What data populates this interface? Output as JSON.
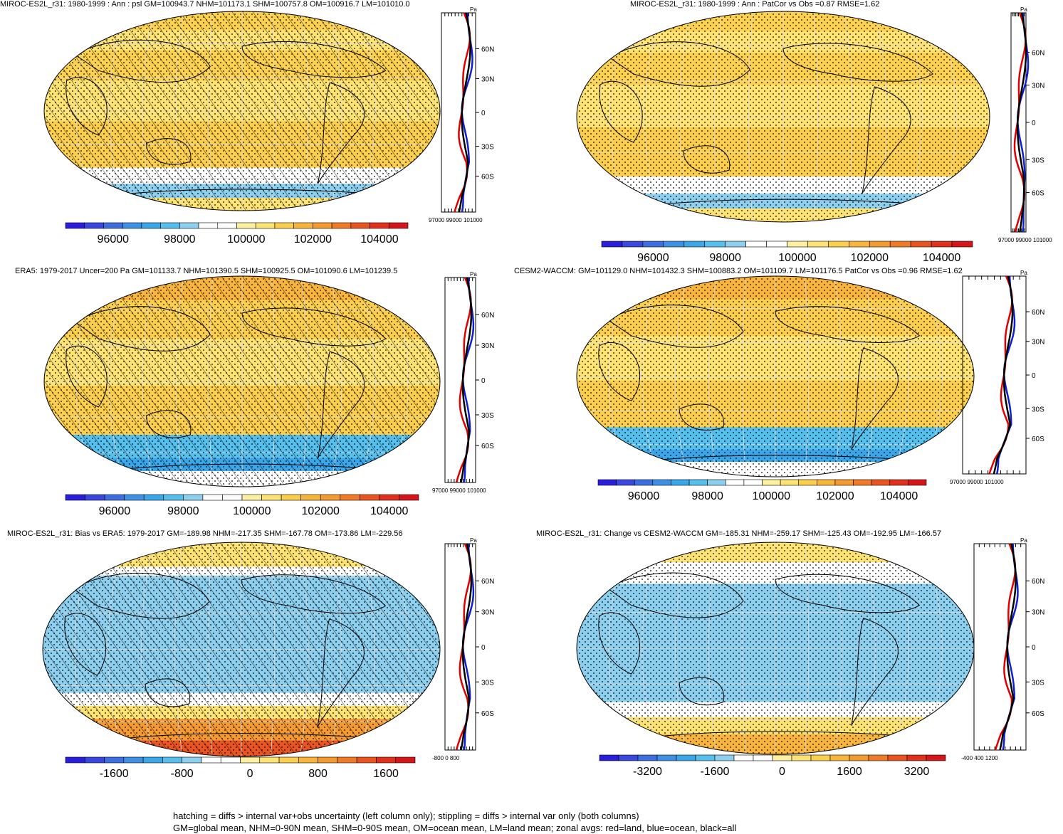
{
  "panels": [
    {
      "title": "MIROC-ES2L_r31: 1980-1999 : Ann : psl GM=100943.7 NHM=101173.1 SHM=100757.8 OM=100916.7 LM=101010.0",
      "colorbar_labels": [
        "96000",
        "98000",
        "100000",
        "102000",
        "104000"
      ],
      "zonal_unit": "Pa",
      "zonal_xlabels": [
        "97000",
        "99000",
        "101000"
      ],
      "lat_labels": [
        "60N",
        "30N",
        "0",
        "30S",
        "60S"
      ],
      "hatching": true,
      "fill_scheme": "abs"
    },
    {
      "title": "MIROC-ES2L_r31: 1980-1999 : Ann : PatCor vs Obs =0.87 RMSE=1.62",
      "colorbar_labels": [
        "96000",
        "98000",
        "100000",
        "102000",
        "104000"
      ],
      "zonal_unit": "Pa",
      "zonal_xlabels": [
        "97000",
        "99000",
        "101000"
      ],
      "lat_labels": [
        "60N",
        "30N",
        "0",
        "30S",
        "60S"
      ],
      "hatching": false,
      "fill_scheme": "abs"
    },
    {
      "title": "ERA5: 1979-2017 Uncer=200 Pa GM=101133.7 NHM=101390.5 SHM=100925.5 OM=101090.6 LM=101239.5",
      "colorbar_labels": [
        "96000",
        "98000",
        "100000",
        "102000",
        "104000"
      ],
      "zonal_unit": "Pa",
      "zonal_xlabels": [
        "97000",
        "99000",
        "101000"
      ],
      "lat_labels": [
        "60N",
        "30N",
        "0",
        "30S",
        "60S"
      ],
      "hatching": true,
      "fill_scheme": "abs2"
    },
    {
      "title": "CESM2-WACCM: GM=101129.0 NHM=101432.3 SHM=100883.2 OM=101109.7 LM=101176.5 PatCor vs Obs =0.96 RMSE=1.62",
      "colorbar_labels": [
        "96000",
        "98000",
        "100000",
        "102000",
        "104000"
      ],
      "zonal_unit": "Pa",
      "zonal_xlabels": [
        "97000",
        "99000",
        "101000"
      ],
      "lat_labels": [
        "60N",
        "30N",
        "0",
        "30S",
        "60S"
      ],
      "hatching": false,
      "fill_scheme": "abs2"
    },
    {
      "title": "MIROC-ES2L_r31: Bias vs ERA5: 1979-2017 GM=-189.98 NHM=-217.35 SHM=-167.78 OM=-173.86 LM=-229.56",
      "colorbar_labels": [
        "-1600",
        "-800",
        "0",
        "800",
        "1600"
      ],
      "zonal_unit": "Pa",
      "zonal_xlabels": [
        "-800",
        "0",
        "800"
      ],
      "lat_labels": [
        "60N",
        "30N",
        "0",
        "30S",
        "60S"
      ],
      "hatching": true,
      "fill_scheme": "diff"
    },
    {
      "title": "MIROC-ES2L_r31: Change vs CESM2-WACCM GM=-185.31 NHM=-259.17 SHM=-125.43 OM=-192.95 LM=-166.57",
      "colorbar_labels": [
        "-3200",
        "-1600",
        "0",
        "1600",
        "3200"
      ],
      "zonal_unit": "Pa",
      "zonal_xlabels": [
        "-400",
        "400",
        "1200"
      ],
      "lat_labels": [
        "60N",
        "30N",
        "0",
        "30S",
        "60S"
      ],
      "hatching": false,
      "fill_scheme": "diff2"
    }
  ],
  "colorbar_colors": [
    "#2a1edc",
    "#3a48e0",
    "#3d6fe0",
    "#3e8fe6",
    "#3aa7ea",
    "#55bfee",
    "#8ccfef",
    "#ffffff",
    "#ffffff",
    "#fdf0a0",
    "#fde274",
    "#fbce4c",
    "#f8b53a",
    "#f59a2f",
    "#f07a25",
    "#ea5420",
    "#e2301c",
    "#d6141a"
  ],
  "footer": {
    "line1": "hatching = diffs > internal var+obs uncertainty (left column only); stippling = diffs > internal var only (both columns)",
    "line2": "GM=global mean, NHM=0-90N mean, SHM=0-90S mean, OM=ocean mean, LM=land mean; zonal avgs: red=land, blue=ocean, black=all"
  }
}
